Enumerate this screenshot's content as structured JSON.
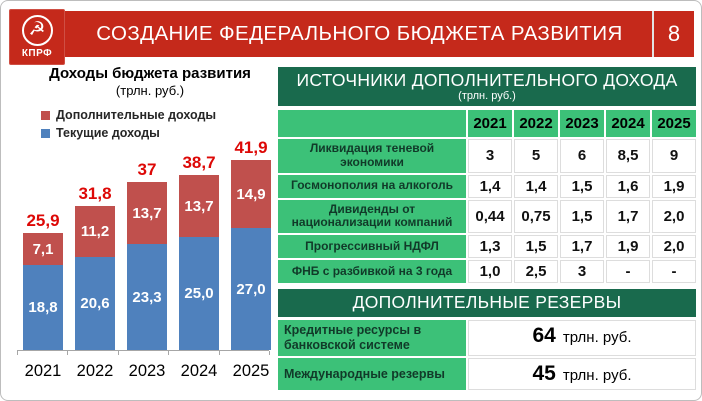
{
  "slide": {
    "title": "СОЗДАНИЕ ФЕДЕРАЛЬНОГО БЮДЖЕТА РАЗВИТИЯ",
    "number": "8",
    "logo_text": "КПРФ"
  },
  "colors": {
    "header_red": "#c5291b",
    "dark_green": "#196a4d",
    "light_green": "#3cc178",
    "bar_red": "#c0504d",
    "bar_blue": "#4f81bd",
    "total_label_red": "#dd0806"
  },
  "chart_data": {
    "type": "bar",
    "stacked": true,
    "title": "Доходы бюджета развития",
    "subtitle": "(трлн. руб.)",
    "xlabel": "",
    "ylabel": "",
    "ylim": [
      0,
      45
    ],
    "legend_position": "top-left",
    "grid": false,
    "categories": [
      "2021",
      "2022",
      "2023",
      "2024",
      "2025"
    ],
    "series": [
      {
        "name": "Дополнительные доходы",
        "color": "#c0504d",
        "values": [
          7.1,
          11.2,
          13.7,
          13.7,
          14.9
        ],
        "labels": [
          "7,1",
          "11,2",
          "13,7",
          "13,7",
          "14,9"
        ]
      },
      {
        "name": "Текущие доходы",
        "color": "#4f81bd",
        "values": [
          18.8,
          20.6,
          23.3,
          25.0,
          27.0
        ],
        "labels": [
          "18,8",
          "20,6",
          "23,3",
          "25,0",
          "27,0"
        ]
      }
    ],
    "totals": [
      25.9,
      31.8,
      37,
      38.7,
      41.9
    ],
    "total_labels": [
      "25,9",
      "31,8",
      "37",
      "38,7",
      "41,9"
    ]
  },
  "sources_table": {
    "title": "ИСТОЧНИКИ ДОПОЛНИТЕЛЬНОГО ДОХОДА",
    "subtitle": "(трлн. руб.)",
    "years": [
      "2021",
      "2022",
      "2023",
      "2024",
      "2025"
    ],
    "rows": [
      {
        "label": "Ликвидация теневой экономики",
        "values": [
          "3",
          "5",
          "6",
          "8,5",
          "9"
        ]
      },
      {
        "label": "Госмонополия на алкоголь",
        "values": [
          "1,4",
          "1,4",
          "1,5",
          "1,6",
          "1,9"
        ]
      },
      {
        "label": "Дивиденды от национализации компаний",
        "values": [
          "0,44",
          "0,75",
          "1,5",
          "1,7",
          "2,0"
        ]
      },
      {
        "label": "Прогрессивный НДФЛ",
        "values": [
          "1,3",
          "1,5",
          "1,7",
          "1,9",
          "2,0"
        ]
      },
      {
        "label": "ФНБ с разбивкой на 3 года",
        "values": [
          "1,0",
          "2,5",
          "3",
          "-",
          "-"
        ]
      }
    ]
  },
  "reserves": {
    "title": "ДОПОЛНИТЕЛЬНЫЕ РЕЗЕРВЫ",
    "rows": [
      {
        "label": "Кредитные ресурсы в банковской системе",
        "value": "64",
        "unit": "трлн. руб."
      },
      {
        "label": "Международные резервы",
        "value": "45",
        "unit": "трлн. руб."
      }
    ]
  }
}
